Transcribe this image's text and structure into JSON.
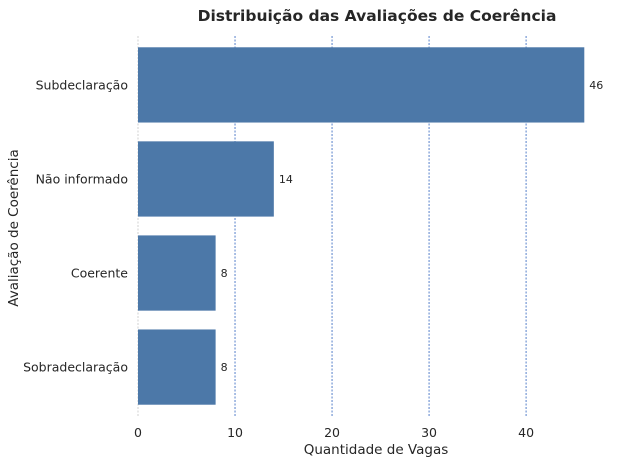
{
  "chart_data": {
    "type": "bar",
    "orientation": "horizontal",
    "title": "Distribuição das Avaliações de Coerência",
    "xlabel": "Quantidade de Vagas",
    "ylabel": "Avaliação de Coerência",
    "categories": [
      "Subdeclaração",
      "Não informado",
      "Coerente",
      "Sobradeclaração"
    ],
    "values": [
      46,
      14,
      8,
      8
    ],
    "xlim": [
      0,
      47
    ],
    "xticks": [
      0,
      10,
      20,
      30,
      40
    ],
    "grid": "vertical dashed",
    "bar_color": "#4c78a8",
    "grid_color": "#4472c4",
    "text_color": "#262626"
  }
}
